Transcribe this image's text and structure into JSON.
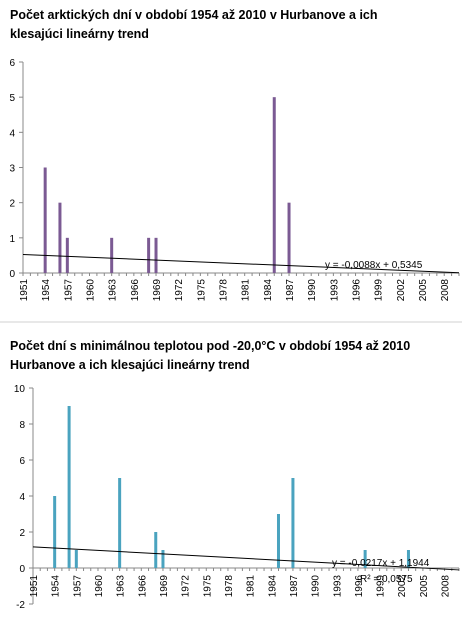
{
  "chart_data": [
    {
      "type": "bar",
      "title_lines": [
        "Počet arktických dní v období 1954  až 2010  v Hurbanove a ich",
        "klesajúci lineárny trend"
      ],
      "bar_color": "#7b5a93",
      "x_range": [
        1951,
        2010
      ],
      "x_ticks": [
        1951,
        1954,
        1957,
        1960,
        1963,
        1966,
        1969,
        1972,
        1975,
        1978,
        1981,
        1984,
        1987,
        1990,
        1993,
        1996,
        1999,
        2002,
        2005,
        2008
      ],
      "ylim": [
        0,
        6
      ],
      "y_ticks": [
        0,
        1,
        2,
        3,
        4,
        5,
        6
      ],
      "bars": [
        {
          "x": 1954,
          "y": 3
        },
        {
          "x": 1956,
          "y": 2
        },
        {
          "x": 1957,
          "y": 1
        },
        {
          "x": 1963,
          "y": 1
        },
        {
          "x": 1968,
          "y": 1
        },
        {
          "x": 1969,
          "y": 1
        },
        {
          "x": 1985,
          "y": 5
        },
        {
          "x": 1987,
          "y": 2
        }
      ],
      "trendline": {
        "slope": -0.0088,
        "intercept": 0.5345,
        "label": "y = -0,0088x + 0,5345"
      },
      "grid": false
    },
    {
      "type": "bar",
      "title_lines": [
        "Počet dní s minimálnou teplotou pod -20,0°C v období 1954  až 2010",
        "Hurbanove a ich klesajúci lineárny trend"
      ],
      "bar_color": "#4aa3bf",
      "x_range": [
        1951,
        2010
      ],
      "x_ticks": [
        1951,
        1954,
        1957,
        1960,
        1963,
        1966,
        1969,
        1972,
        1975,
        1978,
        1981,
        1984,
        1987,
        1990,
        1993,
        1996,
        1999,
        2002,
        2005,
        2008
      ],
      "ylim": [
        -2,
        10
      ],
      "y_ticks": [
        -2,
        0,
        2,
        4,
        6,
        8,
        10
      ],
      "bars": [
        {
          "x": 1954,
          "y": 4
        },
        {
          "x": 1956,
          "y": 9
        },
        {
          "x": 1957,
          "y": 1
        },
        {
          "x": 1963,
          "y": 5
        },
        {
          "x": 1968,
          "y": 2
        },
        {
          "x": 1969,
          "y": 1
        },
        {
          "x": 1985,
          "y": 3
        },
        {
          "x": 1987,
          "y": 5
        },
        {
          "x": 1997,
          "y": 1
        },
        {
          "x": 2003,
          "y": 1
        }
      ],
      "trendline": {
        "slope": -0.0217,
        "intercept": 1.1944,
        "label": "y = -0,0217x + 1,1944"
      },
      "r2_label": "R² = 0,0575",
      "grid": false
    }
  ]
}
